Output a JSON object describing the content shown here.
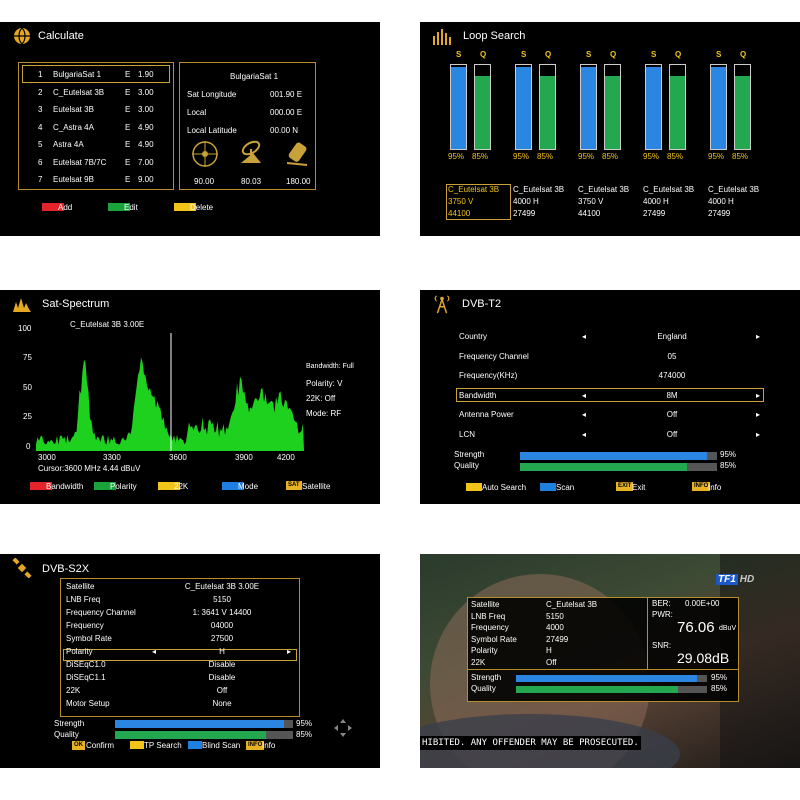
{
  "colors": {
    "red": "#e3242b",
    "green": "#1aa33a",
    "yellow": "#f2c419",
    "blue": "#1f7fe0",
    "gold": "#b58e2a",
    "bar_blue": "#2a86e0",
    "bar_green": "#23a84f"
  },
  "calculate": {
    "title": "Calculate",
    "list": [
      {
        "num": "1",
        "name": "BulgariaSat 1",
        "dir": "E",
        "val": "1.90"
      },
      {
        "num": "2",
        "name": "C_Eutelsat 3B",
        "dir": "E",
        "val": "3.00"
      },
      {
        "num": "3",
        "name": "Eutelsat 3B",
        "dir": "E",
        "val": "3.00"
      },
      {
        "num": "4",
        "name": "C_Astra 4A",
        "dir": "E",
        "val": "4.90"
      },
      {
        "num": "5",
        "name": "Astra 4A",
        "dir": "E",
        "val": "4.90"
      },
      {
        "num": "6",
        "name": "Eutelsat 7B/7C",
        "dir": "E",
        "val": "7.00"
      },
      {
        "num": "7",
        "name": "Eutelsat 9B",
        "dir": "E",
        "val": "9.00"
      }
    ],
    "info": {
      "name": "BulgariaSat 1",
      "rows": [
        {
          "label": "Sat Longitude",
          "value": "001.90 E"
        },
        {
          "label": "Local",
          "value": "000.00 E"
        },
        {
          "label": "Local Latitude",
          "value": "00.00 N"
        }
      ],
      "angles": [
        "90.00",
        "80.03",
        "180.00"
      ]
    },
    "legend": [
      "Add",
      "Edit",
      "Delete"
    ]
  },
  "loop": {
    "title": "Loop Search",
    "bars": [
      {
        "s": 0.95,
        "q": 0.85,
        "s_text": "95%",
        "q_text": "85%"
      },
      {
        "s": 0.95,
        "q": 0.85,
        "s_text": "95%",
        "q_text": "85%"
      },
      {
        "s": 0.95,
        "q": 0.85,
        "s_text": "95%",
        "q_text": "85%"
      },
      {
        "s": 0.95,
        "q": 0.85,
        "s_text": "95%",
        "q_text": "85%"
      },
      {
        "s": 0.95,
        "q": 0.85,
        "s_text": "95%",
        "q_text": "85%"
      }
    ],
    "s_label": "S",
    "q_label": "Q",
    "tps": [
      {
        "sat": "C_Eutelsat 3B",
        "freq": "3750 V",
        "sr": "44100"
      },
      {
        "sat": "C_Eutelsat 3B",
        "freq": "4000 H",
        "sr": "27499"
      },
      {
        "sat": "C_Eutelsat 3B",
        "freq": "3750 V",
        "sr": "44100"
      },
      {
        "sat": "C_Eutelsat 3B",
        "freq": "4000 H",
        "sr": "27499"
      },
      {
        "sat": "C_Eutelsat 3B",
        "freq": "4000 H",
        "sr": "27499"
      }
    ]
  },
  "spectrum": {
    "title": "Sat-Spectrum",
    "satellite": "C_Eutelsat 3B   3.00E",
    "y_ticks": [
      "100",
      "75",
      "50",
      "25",
      "0"
    ],
    "x_ticks": [
      "3000",
      "3300",
      "3600",
      "3900",
      "4200"
    ],
    "cursor": "Cursor:3600 MHz  4.44 dBuV",
    "side": {
      "bandwidth": "Bandwidth: Full",
      "polarity": "Polarity: V",
      "k22": "22K: Off",
      "mode": "Mode: RF"
    },
    "legend": [
      "Bandwidth",
      "Polarity",
      "22K",
      "Mode",
      "Satellite"
    ],
    "sat_key": "SAT"
  },
  "dvbt2": {
    "title": "DVB-T2",
    "rows": [
      {
        "label": "Country",
        "value": "England"
      },
      {
        "label": "Frequency Channel",
        "value": "05"
      },
      {
        "label": "Frequency(KHz)",
        "value": "474000"
      },
      {
        "label": "Bandwidth",
        "value": "8M"
      },
      {
        "label": "Antenna Power",
        "value": "Off"
      },
      {
        "label": "LCN",
        "value": "Off"
      }
    ],
    "strength_label": "Strength",
    "quality_label": "Quality",
    "strength": 0.95,
    "quality": 0.85,
    "strength_text": "95%",
    "quality_text": "85%",
    "legend": [
      "Auto Search",
      "Scan",
      "Exit",
      "Info"
    ],
    "exit_key": "EXIT",
    "info_key": "INFO"
  },
  "dvbs2x": {
    "title": "DVB-S2X",
    "rows": [
      {
        "label": "Satellite",
        "value": "C_Eutelsat 3B   3.00E"
      },
      {
        "label": "LNB Freq",
        "value": "5150"
      },
      {
        "label": "Frequency Channel",
        "value": "1: 3641 V 14400"
      },
      {
        "label": "Frequency",
        "value": "04000"
      },
      {
        "label": "Symbol Rate",
        "value": "27500"
      },
      {
        "label": "Polarity",
        "value": "H"
      },
      {
        "label": "DiSEqC1.0",
        "value": "Disable"
      },
      {
        "label": "DiSEqC1.1",
        "value": "Disable"
      },
      {
        "label": "22K",
        "value": "Off"
      },
      {
        "label": "Motor Setup",
        "value": "None"
      }
    ],
    "strength_label": "Strength",
    "quality_label": "Quality",
    "strength": 0.95,
    "quality": 0.85,
    "strength_text": "95%",
    "quality_text": "85%",
    "legend": [
      "Confirm",
      "TP Search",
      "Blind Scan",
      "Info"
    ],
    "ok_key": "OK",
    "info_key": "INFO"
  },
  "tv": {
    "logo": "TF1",
    "logo_hd": "HD",
    "rows": [
      {
        "label": "Satellite",
        "value": "C_Eutelsat 3B"
      },
      {
        "label": "LNB Freq",
        "value": "5150"
      },
      {
        "label": "Frequency",
        "value": "4000"
      },
      {
        "label": "Symbol Rate",
        "value": "27499"
      },
      {
        "label": "Polarity",
        "value": "H"
      },
      {
        "label": "22K",
        "value": "Off"
      }
    ],
    "ber_label": "BER:",
    "ber_value": "0.00E+00",
    "pwr_label": "PWR:",
    "pwr_value": "76.06",
    "pwr_unit": "dBuV",
    "snr_label": "SNR:",
    "snr_value": "29.08dB",
    "strength_label": "Strength",
    "quality_label": "Quality",
    "strength": 0.95,
    "quality": 0.85,
    "strength_text": "95%",
    "quality_text": "85%",
    "subtitle": "HIBITED. ANY OFFENDER MAY BE PROSECUTED."
  }
}
